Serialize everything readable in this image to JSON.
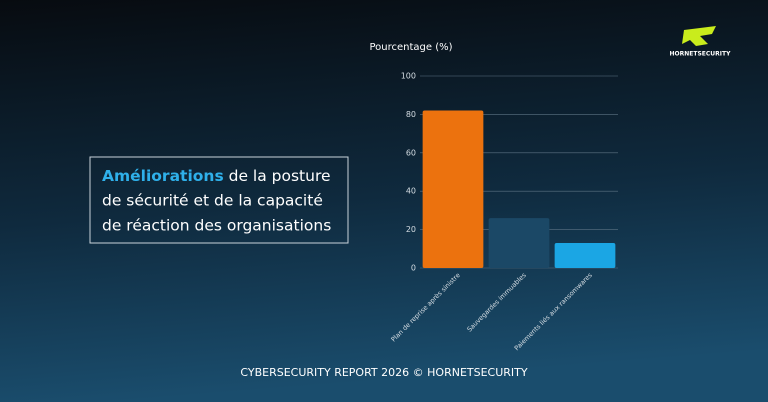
{
  "chart_data": {
    "type": "bar",
    "y_label": "Pourcentage (%)",
    "categories": [
      "Plan de reprise après sinistre",
      "Sauvegardes immuables",
      "Paiements liés aux ransomwares"
    ],
    "values": [
      82,
      26,
      13
    ],
    "colors": [
      "#ec720e",
      "#1b4866",
      "#1ba6e4"
    ],
    "ylim": [
      0,
      100
    ],
    "yticks": [
      0,
      20,
      40,
      60,
      80,
      100
    ],
    "grid": true,
    "headline_highlight": "Améliorations",
    "headline_lines": [
      "de la posture",
      "de sécurité et de la capacité",
      "de réaction des organisations"
    ],
    "footer": "CYBERSECURITY REPORT 2026 © HORNETSECURITY",
    "logo_text": "HORNETSECURITY"
  }
}
